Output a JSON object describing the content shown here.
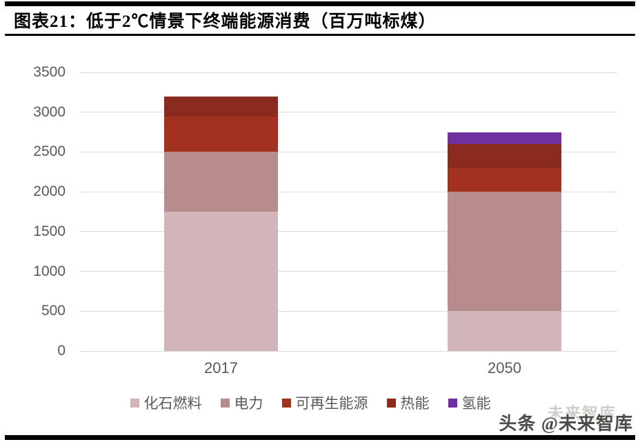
{
  "header": {
    "title": "图表21：低于2℃情景下终端能源消费（百万吨标煤）"
  },
  "chart_data": {
    "type": "bar",
    "stacked": true,
    "title": "低于2℃情景下终端能源消费（百万吨标煤）",
    "unit": "百万吨标煤",
    "categories": [
      "2017",
      "2050"
    ],
    "series": [
      {
        "name": "化石燃料",
        "color": "#d1b5b8",
        "values": [
          1750,
          500
        ]
      },
      {
        "name": "电力",
        "color": "#b88c8c",
        "values": [
          750,
          1500
        ]
      },
      {
        "name": "可再生能源",
        "color": "#a2311f",
        "values": [
          450,
          300
        ]
      },
      {
        "name": "热能",
        "color": "#8b2a1e",
        "values": [
          250,
          300
        ]
      },
      {
        "name": "氢能",
        "color": "#7030a0",
        "values": [
          0,
          150
        ]
      }
    ],
    "totals": {
      "2017": 3200,
      "2050": 2750
    },
    "ylim": [
      0,
      3500
    ],
    "ytick_step": 500,
    "grid": true,
    "gridline_color": "#d9d9d9",
    "axis_text_color": "#595959",
    "legend_position": "bottom"
  },
  "watermark": {
    "ghost": "未来智库",
    "label": "头条 @未来智库"
  }
}
